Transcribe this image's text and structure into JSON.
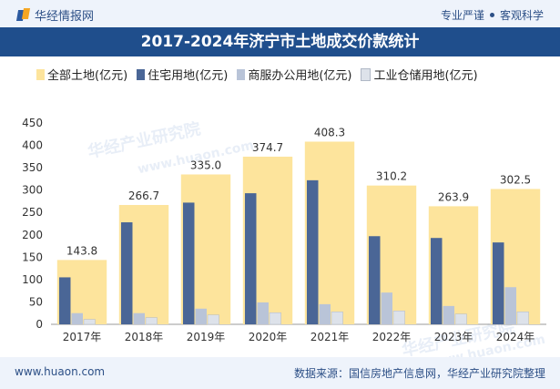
{
  "header": {
    "brand": "华经情报网",
    "tagline_left": "专业严谨",
    "tagline_right": "客观科学"
  },
  "footer": {
    "website": "www.huaon.com",
    "source": "数据来源：国信房地产信息网，华经产业研究院整理"
  },
  "watermarks": [
    "华经产业研究院",
    "www.huaon.com",
    "华经产业研究院",
    "www.huaon.com"
  ],
  "colors": {
    "total": "#fde49c",
    "residential": "#4a6696",
    "commercial": "#b9c4d8",
    "industrial": "#dde2ea"
  },
  "chart_data": {
    "type": "bar",
    "title": "2017-2024年济宁市土地成交价款统计",
    "categories": [
      "2017年",
      "2018年",
      "2019年",
      "2020年",
      "2021年",
      "2022年",
      "2023年",
      "2024年"
    ],
    "series": [
      {
        "name": "全部土地(亿元)",
        "values": [
          143.8,
          266.7,
          335.0,
          374.7,
          408.3,
          310.2,
          263.9,
          302.5
        ],
        "labels": [
          "143.8",
          "266.7",
          "335.0",
          "374.7",
          "408.3",
          "310.2",
          "263.9",
          "302.5"
        ]
      },
      {
        "name": "住宅用地(亿元)",
        "values": [
          105,
          228,
          272,
          293,
          322,
          197,
          193,
          183
        ]
      },
      {
        "name": "商服办公用地(亿元)",
        "values": [
          25,
          25,
          35,
          49,
          45,
          71,
          41,
          83
        ]
      },
      {
        "name": "工业仓储用地(亿元)",
        "values": [
          11,
          15,
          21,
          26,
          28,
          30,
          23,
          28
        ]
      }
    ],
    "yticks": [
      "0",
      "50",
      "100",
      "150",
      "200",
      "250",
      "300",
      "350",
      "400",
      "450"
    ],
    "ylim": [
      0,
      450
    ],
    "xlabel": "",
    "ylabel": ""
  }
}
